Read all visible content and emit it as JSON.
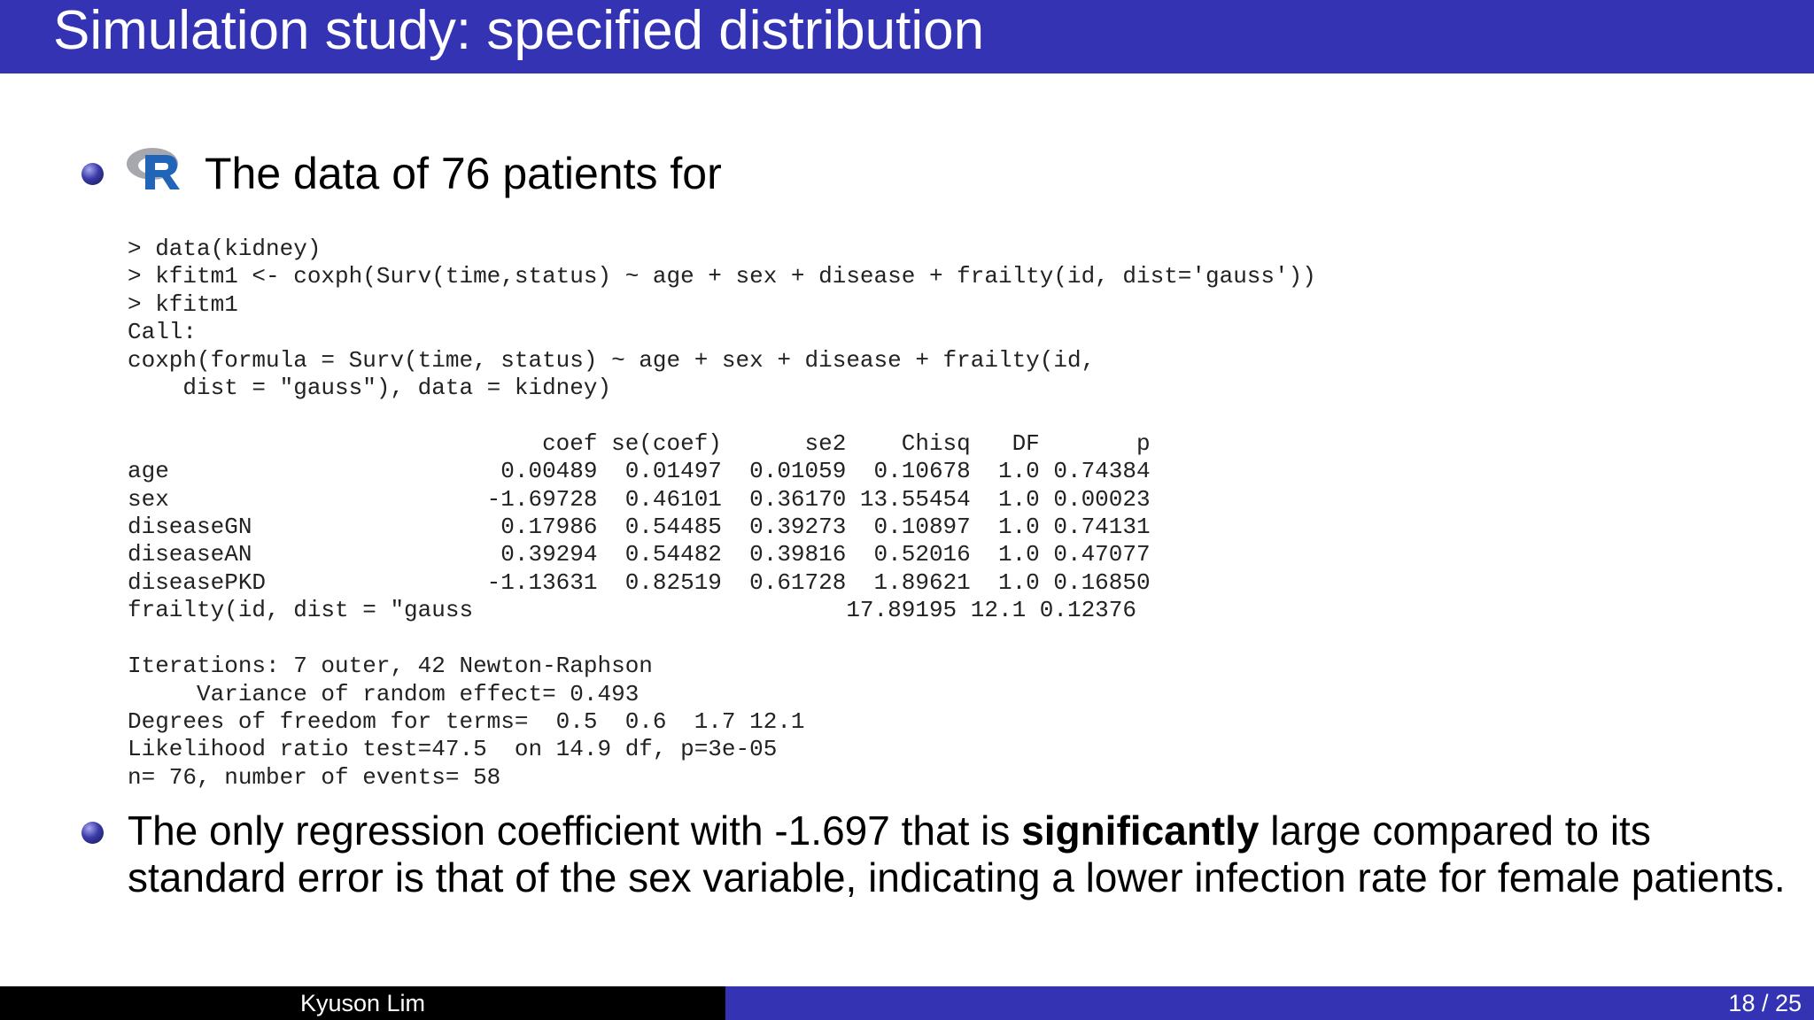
{
  "slide": {
    "title": "Simulation study: specified distribution",
    "bullet1": "The data of 76 patients for",
    "code_lines": [
      "> data(kidney)",
      "> kfitm1 <- coxph(Surv(time,status) ~ age + sex + disease + frailty(id, dist='gauss'))",
      "> kfitm1",
      "Call:",
      "coxph(formula = Surv(time, status) ~ age + sex + disease + frailty(id,",
      "    dist = \"gauss\"), data = kidney)",
      "",
      "                              coef se(coef)      se2    Chisq   DF       p",
      "age                        0.00489  0.01497  0.01059  0.10678  1.0 0.74384",
      "sex                       -1.69728  0.46101  0.36170 13.55454  1.0 0.00023",
      "diseaseGN                  0.17986  0.54485  0.39273  0.10897  1.0 0.74131",
      "diseaseAN                  0.39294  0.54482  0.39816  0.52016  1.0 0.47077",
      "diseasePKD                -1.13631  0.82519  0.61728  1.89621  1.0 0.16850",
      "frailty(id, dist = \"gauss                           17.89195 12.1 0.12376",
      "",
      "Iterations: 7 outer, 42 Newton-Raphson",
      "     Variance of random effect= 0.493",
      "Degrees of freedom for terms=  0.5  0.6  1.7 12.1",
      "Likelihood ratio test=47.5  on 14.9 df, p=3e-05",
      "n= 76, number of events= 58"
    ],
    "bullet2": {
      "before": "The only regression coefficient with -1.697 that is ",
      "emphasis": "significantly",
      "after": " large compared to its standard error is that of the sex variable, indicating a lower infection rate for female patients."
    }
  },
  "footer": {
    "author": "Kyuson Lim",
    "page": "18 / 25"
  },
  "colors": {
    "theme_blue": "#3333b3",
    "footer_black": "#000000",
    "r_logo_blue": "#2165b8",
    "r_logo_gray": "#9a9aa3"
  },
  "icons": {
    "bullet": "ball-bullet-icon",
    "r_logo": "r-language-logo-icon"
  }
}
